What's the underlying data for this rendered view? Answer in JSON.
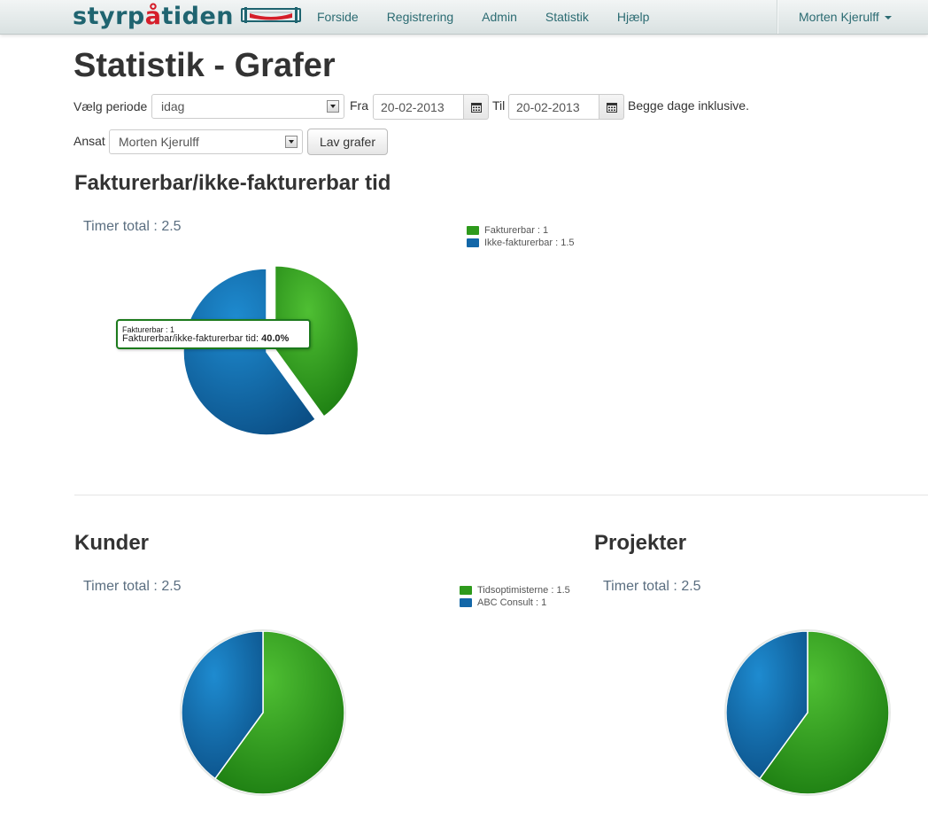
{
  "navbar": {
    "brand_prefix": "styrp",
    "brand_accent": "å",
    "brand_suffix": "tiden",
    "links": [
      "Forside",
      "Registrering",
      "Admin",
      "Statistik",
      "Hjælp"
    ],
    "user": "Morten Kjerulff"
  },
  "page": {
    "title": "Statistik - Grafer"
  },
  "form": {
    "period_label": "Vælg periode",
    "period_value": "idag",
    "from_label": "Fra",
    "from_value": "20-02-2013",
    "to_label": "Til",
    "to_value": "20-02-2013",
    "inclusive_note": "Begge dage inklusive.",
    "employee_label": "Ansat",
    "employee_value": "Morten Kjerulff",
    "submit_label": "Lav grafer"
  },
  "sections": {
    "billable": {
      "title": "Fakturerbar/ikke-fakturerbar tid",
      "total": "Timer total : 2.5"
    },
    "customers": {
      "title": "Kunder",
      "total": "Timer total : 2.5"
    },
    "projects": {
      "title": "Projekter",
      "total": "Timer total : 2.5"
    }
  },
  "tooltip": {
    "line1": "Fakturerbar : 1",
    "line2_label": "Fakturerbar/ikke-fakturerbar tid:",
    "line2_value": "40.0%"
  },
  "colors": {
    "green": "#2e9a1c",
    "blue": "#1367a8",
    "brand": "#1f6470",
    "brand_accent": "#d51e2a"
  },
  "chart_data": [
    {
      "type": "pie",
      "title": "Fakturerbar/ikke-fakturerbar tid",
      "categories": [
        "Fakturerbar",
        "Ikke-fakturerbar"
      ],
      "values": [
        1,
        1.5
      ],
      "legend": [
        "Fakturerbar : 1",
        "Ikke-fakturerbar : 1.5"
      ],
      "exploded": [
        true,
        false
      ],
      "legend_position": "top-right"
    },
    {
      "type": "pie",
      "title": "Kunder",
      "categories": [
        "Tidsoptimisterne",
        "ABC Consult"
      ],
      "values": [
        1.5,
        1
      ],
      "legend": [
        "Tidsoptimisterne : 1.5",
        "ABC Consult : 1"
      ],
      "exploded": [
        false,
        false
      ],
      "legend_position": "top-right"
    },
    {
      "type": "pie",
      "title": "Projekter",
      "categories": [
        "",
        ""
      ],
      "values": [
        1.5,
        1
      ],
      "legend": [],
      "exploded": [
        false,
        false
      ],
      "legend_position": "none"
    }
  ]
}
